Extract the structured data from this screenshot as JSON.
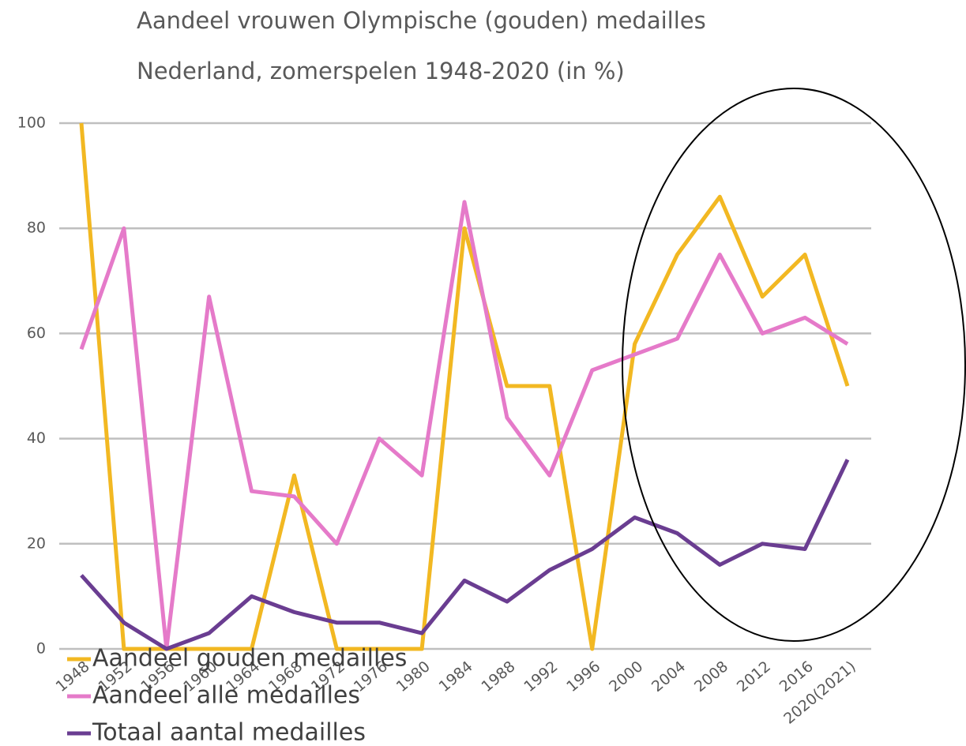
{
  "chart_data": {
    "type": "line",
    "title": "Aandeel vrouwen Olympische (gouden) medailles",
    "subtitle": "Nederland, zomerspelen 1948-2020 (in %)",
    "categories": [
      "1948",
      "1952",
      "1956",
      "1960",
      "1964",
      "1968",
      "1972",
      "1976",
      "1980",
      "1984",
      "1988",
      "1992",
      "1996",
      "2000",
      "2004",
      "2008",
      "2012",
      "2016",
      "2020(2021)"
    ],
    "series": [
      {
        "name": "Aandeel gouden medailles",
        "color": "#f2b822",
        "values": [
          100,
          0,
          0,
          0,
          0,
          33,
          0,
          0,
          0,
          80,
          50,
          50,
          0,
          58,
          75,
          86,
          67,
          75,
          50
        ]
      },
      {
        "name": "Aandeel alle medailles",
        "color": "#e57ac9",
        "values": [
          57,
          80,
          0,
          67,
          30,
          29,
          20,
          40,
          33,
          85,
          44,
          33,
          53,
          56,
          59,
          75,
          60,
          63,
          58
        ]
      },
      {
        "name": "Totaal aantal medailles",
        "color": "#6a3d91",
        "values": [
          14,
          5,
          0,
          3,
          10,
          7,
          5,
          5,
          3,
          13,
          9,
          15,
          19,
          25,
          22,
          16,
          20,
          19,
          36
        ]
      }
    ],
    "ylim": [
      0,
      100
    ],
    "yticks": [
      0,
      20,
      40,
      60,
      80,
      100
    ],
    "grid": true,
    "legend": "bottom-left"
  }
}
